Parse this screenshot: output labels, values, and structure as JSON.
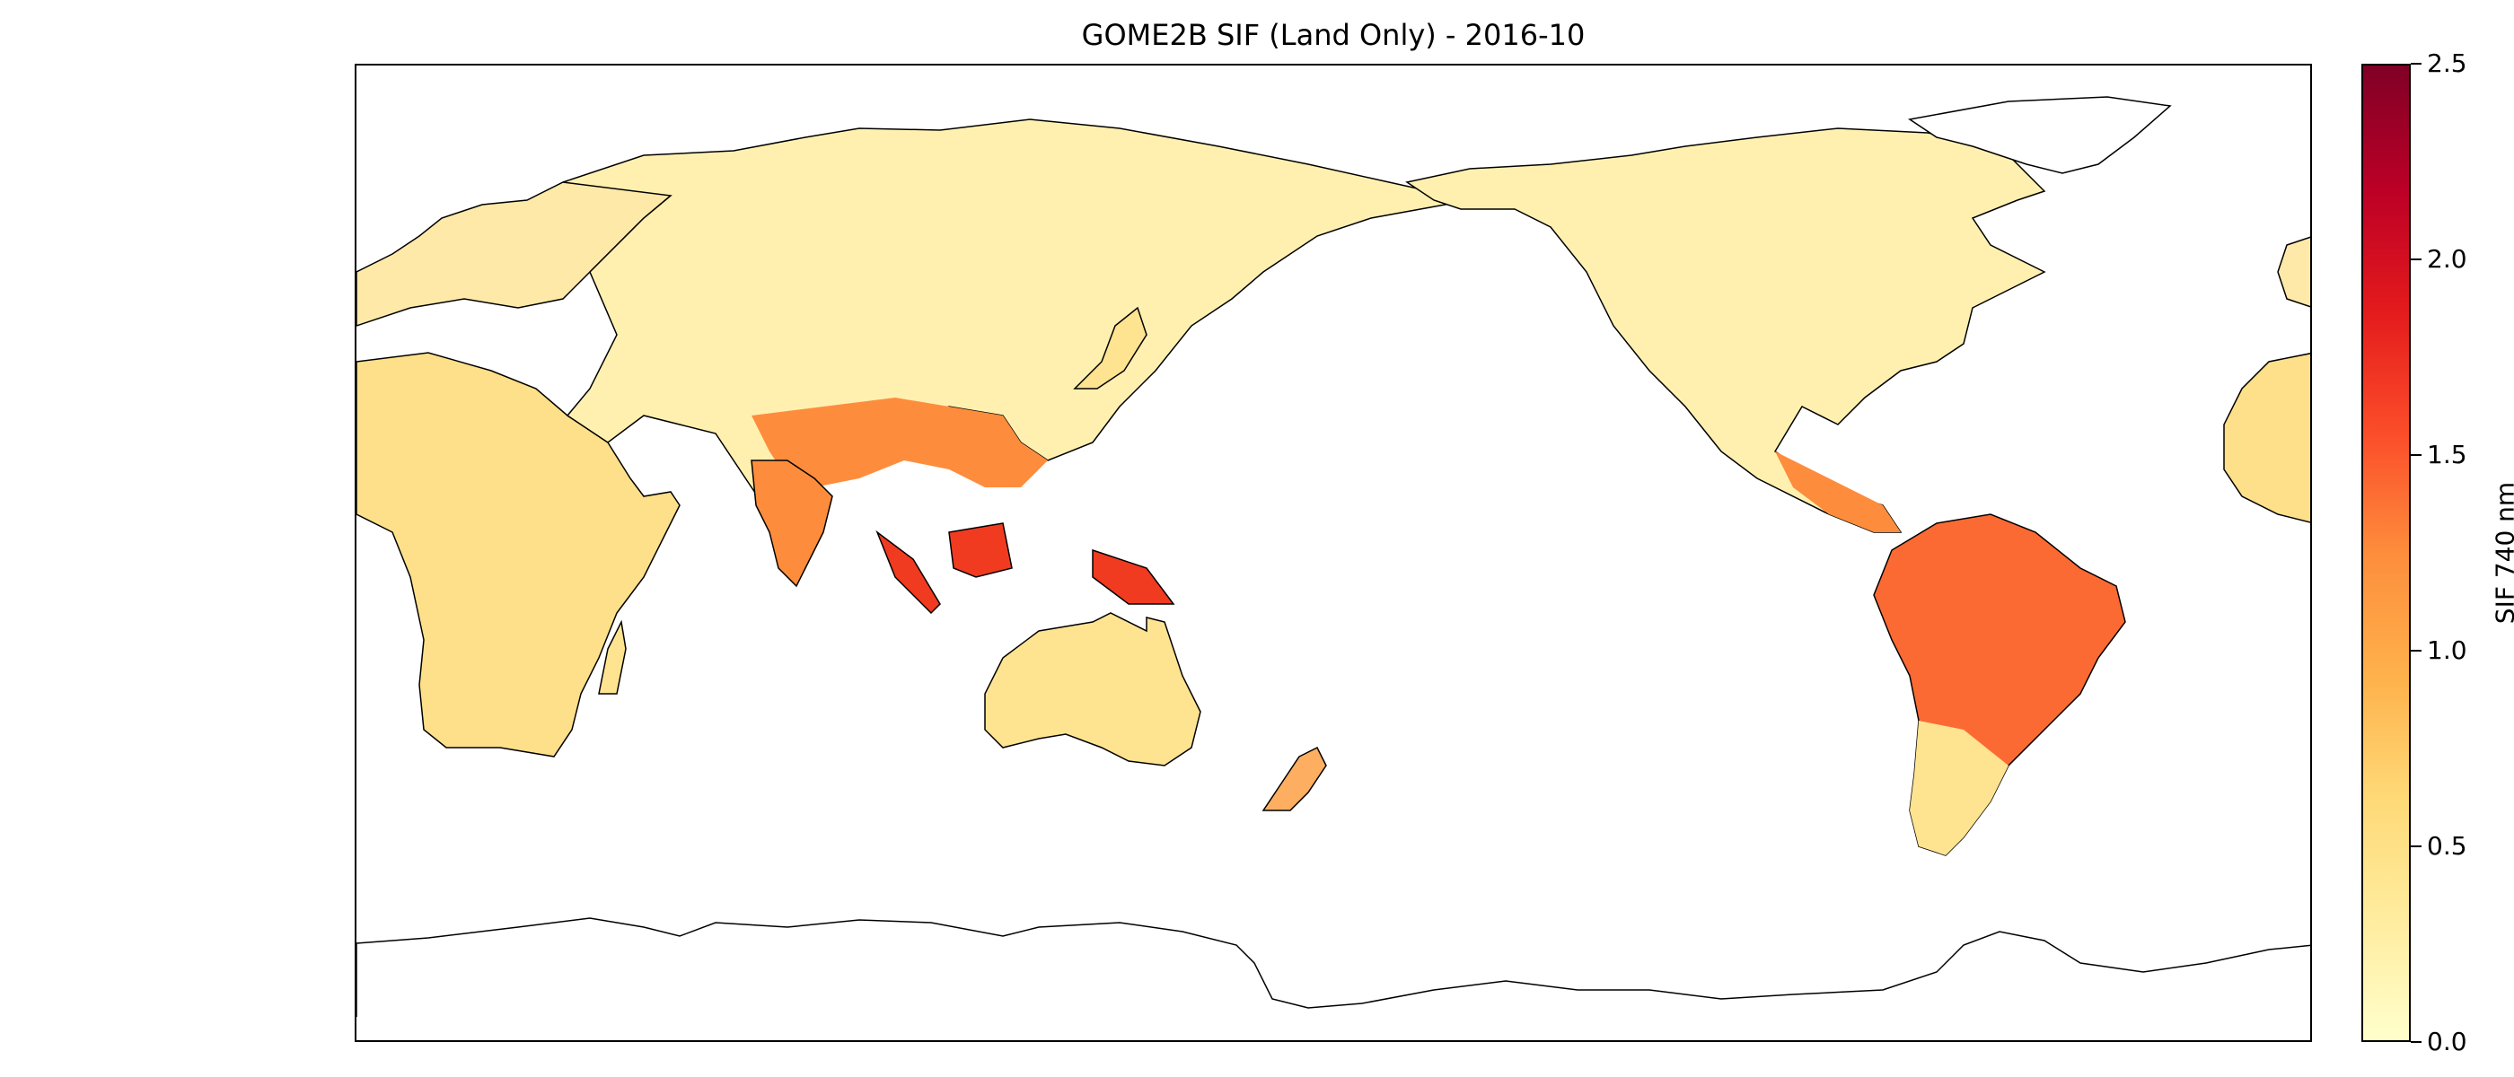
{
  "title": "GOME2B SIF (Land Only) - 2016-10",
  "colorbar": {
    "label": "SIF 740 nm",
    "ticks": [
      "0.0",
      "0.5",
      "1.0",
      "1.5",
      "2.0",
      "2.5"
    ],
    "min": 0.0,
    "max": 2.5,
    "colormap": [
      "#ffffcc",
      "#ffeda0",
      "#fed976",
      "#feb24c",
      "#fd8d3c",
      "#fc4e2a",
      "#e31a1c",
      "#bd0026",
      "#800026"
    ]
  },
  "map": {
    "projection": "equirectangular",
    "central_longitude": 180,
    "coastline_color": "#000000",
    "background": "#ffffff"
  }
}
